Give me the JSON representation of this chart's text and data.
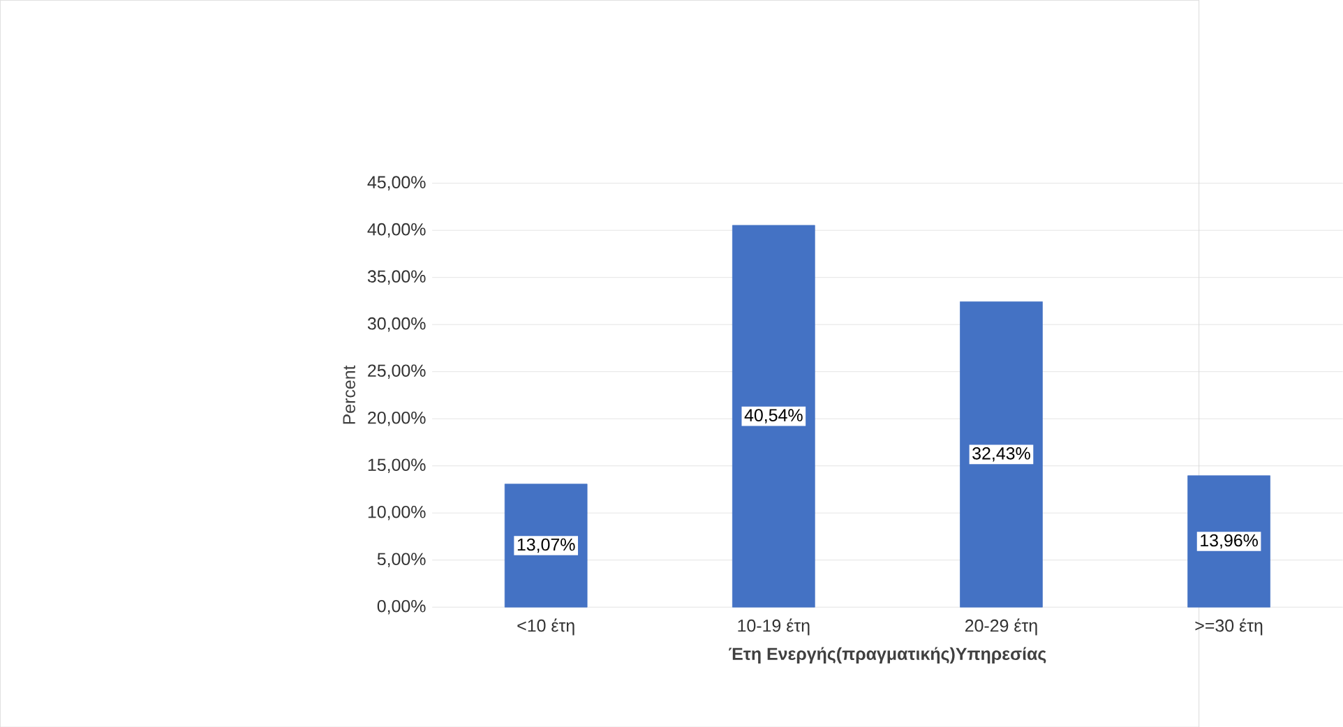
{
  "chart_data": {
    "type": "bar",
    "xlabel": "Έτη Ενεργής(πραγματικής)Υπηρεσίας",
    "ylabel": "Percent",
    "categories": [
      "<10 έτη",
      "10-19 έτη",
      "20-29 έτη",
      ">=30 έτη"
    ],
    "values": [
      13.07,
      40.54,
      32.43,
      13.96
    ],
    "value_labels": [
      "13,07%",
      "40,54%",
      "32,43%",
      "13,96%"
    ],
    "color": "#4472c4",
    "ylim": [
      0,
      45
    ],
    "yticks": [
      {
        "value": 0,
        "label": "0,00%"
      },
      {
        "value": 5,
        "label": "5,00%"
      },
      {
        "value": 10,
        "label": "10,00%"
      },
      {
        "value": 15,
        "label": "15,00%"
      },
      {
        "value": 20,
        "label": "20,00%"
      },
      {
        "value": 25,
        "label": "25,00%"
      },
      {
        "value": 30,
        "label": "30,00%"
      },
      {
        "value": 35,
        "label": "35,00%"
      },
      {
        "value": 40,
        "label": "40,00%"
      },
      {
        "value": 45,
        "label": "45,00%"
      }
    ],
    "grid": "y"
  }
}
